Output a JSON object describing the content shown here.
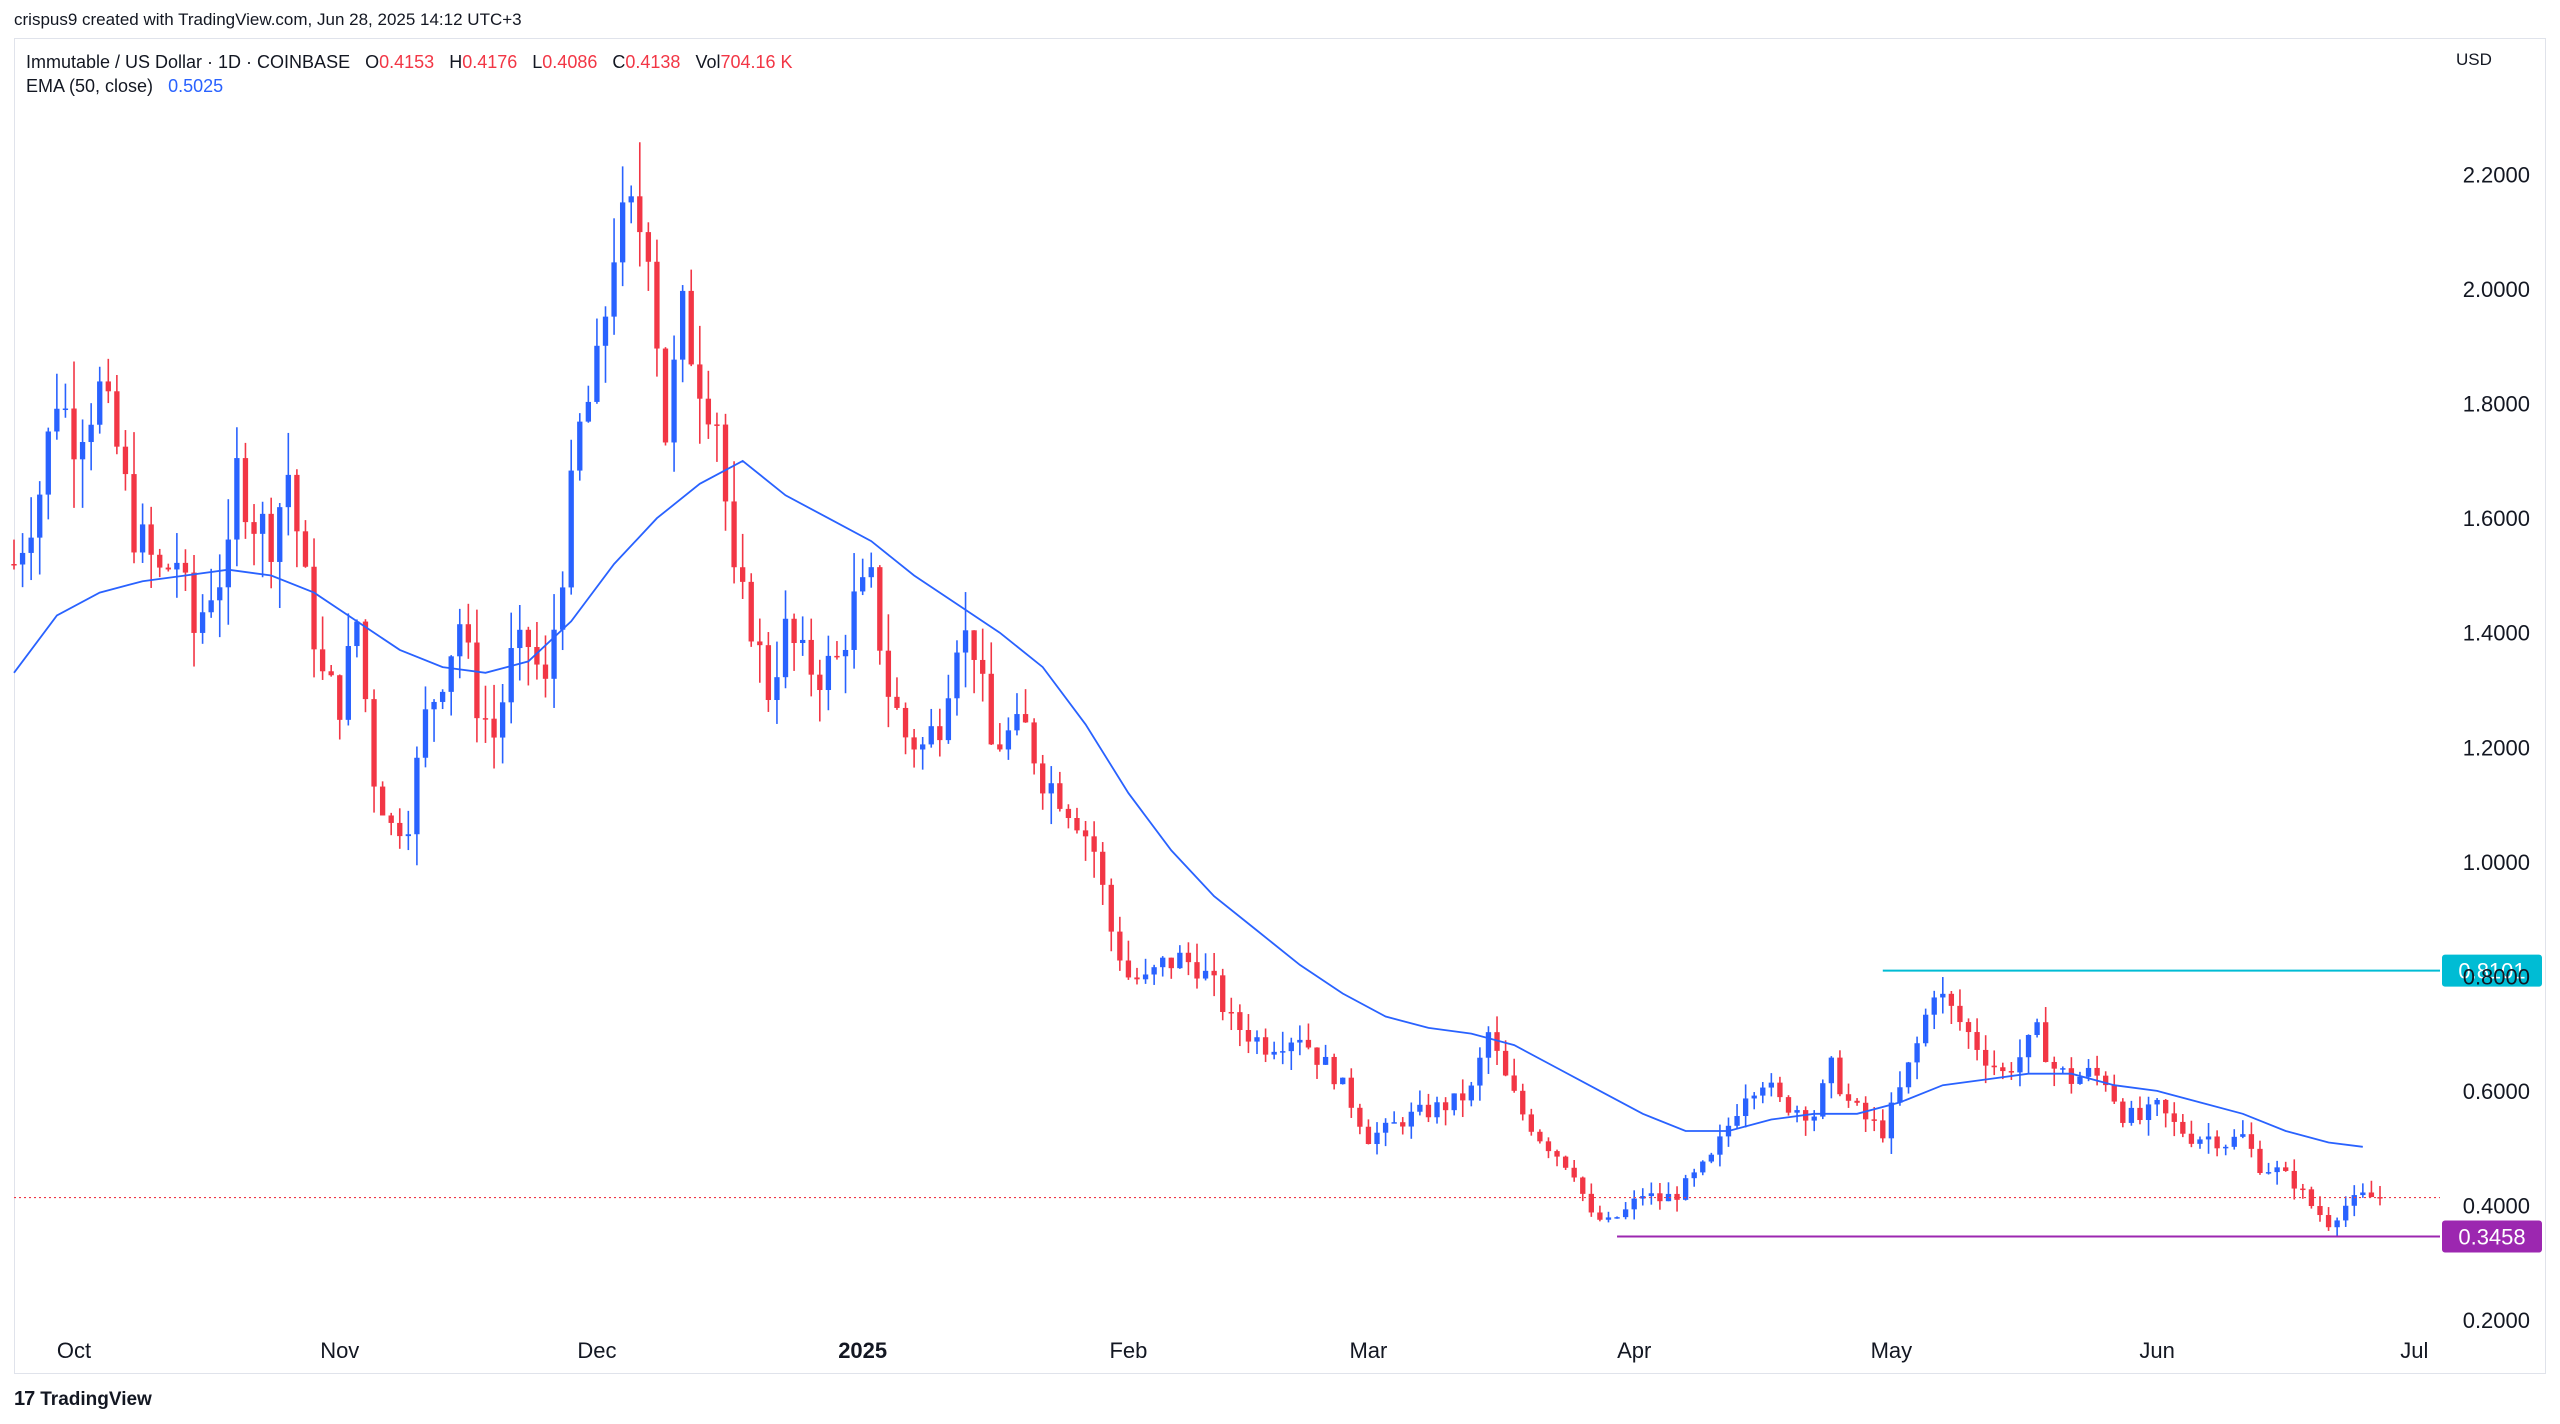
{
  "header": {
    "credit": "crispus9 created with TradingView.com, Jun 28, 2025 14:12 UTC+3"
  },
  "legend": {
    "symbol": "Immutable / US Dollar · 1D · COINBASE",
    "o_label": "O",
    "o_value": "0.4153",
    "h_label": "H",
    "h_value": "0.4176",
    "l_label": "L",
    "l_value": "0.4086",
    "c_label": "C",
    "c_value": "0.4138",
    "vol_label": "Vol",
    "vol_value": "704.16 K",
    "ema_label": "EMA (50, close)",
    "ema_value": "0.5025"
  },
  "currency": "USD",
  "footer": {
    "brand": "TradingView"
  },
  "colors": {
    "bull": "#2962ff",
    "bear": "#f23645",
    "ema": "#2962ff",
    "resistance": "#00bcd4",
    "support": "#9c27b0",
    "last_price": "#f23645"
  },
  "chart_data": {
    "type": "candlestick",
    "title": "",
    "ylim": [
      0.2,
      2.4
    ],
    "yticks": [
      "0.2000",
      "0.4000",
      "0.6000",
      "0.8000",
      "1.0000",
      "1.2000",
      "1.4000",
      "1.6000",
      "1.8000",
      "2.0000",
      "2.2000"
    ],
    "xticks": [
      {
        "label": "Oct",
        "bold": false,
        "day": 7
      },
      {
        "label": "Nov",
        "bold": false,
        "day": 38
      },
      {
        "label": "Dec",
        "bold": false,
        "day": 68
      },
      {
        "label": "2025",
        "bold": true,
        "day": 99
      },
      {
        "label": "Feb",
        "bold": false,
        "day": 130
      },
      {
        "label": "Mar",
        "bold": false,
        "day": 158
      },
      {
        "label": "Apr",
        "bold": false,
        "day": 189
      },
      {
        "label": "May",
        "bold": false,
        "day": 219
      },
      {
        "label": "Jun",
        "bold": false,
        "day": 250
      },
      {
        "label": "Jul",
        "bold": false,
        "day": 280
      }
    ],
    "day_range": [
      0,
      283
    ],
    "price_path": [
      [
        0,
        1.52
      ],
      [
        3,
        1.65
      ],
      [
        5,
        1.82
      ],
      [
        7,
        1.75
      ],
      [
        10,
        1.82
      ],
      [
        12,
        1.72
      ],
      [
        14,
        1.58
      ],
      [
        17,
        1.5
      ],
      [
        19,
        1.53
      ],
      [
        21,
        1.4
      ],
      [
        23,
        1.48
      ],
      [
        25,
        1.52
      ],
      [
        26,
        1.68
      ],
      [
        28,
        1.6
      ],
      [
        30,
        1.57
      ],
      [
        32,
        1.68
      ],
      [
        34,
        1.48
      ],
      [
        36,
        1.32
      ],
      [
        38,
        1.28
      ],
      [
        40,
        1.42
      ],
      [
        42,
        1.15
      ],
      [
        44,
        1.06
      ],
      [
        46,
        1.08
      ],
      [
        48,
        1.25
      ],
      [
        50,
        1.33
      ],
      [
        52,
        1.42
      ],
      [
        54,
        1.28
      ],
      [
        56,
        1.22
      ],
      [
        58,
        1.35
      ],
      [
        60,
        1.38
      ],
      [
        62,
        1.3
      ],
      [
        64,
        1.52
      ],
      [
        66,
        1.75
      ],
      [
        68,
        1.85
      ],
      [
        70,
        2.08
      ],
      [
        72,
        2.12
      ],
      [
        74,
        2.1
      ],
      [
        76,
        1.75
      ],
      [
        78,
        1.95
      ],
      [
        80,
        1.85
      ],
      [
        82,
        1.78
      ],
      [
        84,
        1.48
      ],
      [
        86,
        1.42
      ],
      [
        88,
        1.3
      ],
      [
        90,
        1.4
      ],
      [
        92,
        1.35
      ],
      [
        94,
        1.33
      ],
      [
        96,
        1.35
      ],
      [
        98,
        1.45
      ],
      [
        100,
        1.48
      ],
      [
        102,
        1.3
      ],
      [
        104,
        1.22
      ],
      [
        106,
        1.2
      ],
      [
        108,
        1.25
      ],
      [
        110,
        1.4
      ],
      [
        112,
        1.38
      ],
      [
        114,
        1.2
      ],
      [
        116,
        1.22
      ],
      [
        118,
        1.23
      ],
      [
        120,
        1.15
      ],
      [
        122,
        1.12
      ],
      [
        124,
        1.08
      ],
      [
        126,
        1.02
      ],
      [
        128,
        0.88
      ],
      [
        130,
        0.8
      ],
      [
        132,
        0.79
      ],
      [
        134,
        0.82
      ],
      [
        136,
        0.83
      ],
      [
        138,
        0.82
      ],
      [
        140,
        0.78
      ],
      [
        142,
        0.72
      ],
      [
        144,
        0.7
      ],
      [
        146,
        0.68
      ],
      [
        148,
        0.69
      ],
      [
        150,
        0.7
      ],
      [
        152,
        0.66
      ],
      [
        154,
        0.63
      ],
      [
        156,
        0.58
      ],
      [
        158,
        0.52
      ],
      [
        160,
        0.53
      ],
      [
        162,
        0.55
      ],
      [
        164,
        0.56
      ],
      [
        166,
        0.57
      ],
      [
        168,
        0.58
      ],
      [
        170,
        0.6
      ],
      [
        172,
        0.7
      ],
      [
        174,
        0.62
      ],
      [
        176,
        0.56
      ],
      [
        178,
        0.52
      ],
      [
        180,
        0.49
      ],
      [
        182,
        0.46
      ],
      [
        184,
        0.38
      ],
      [
        186,
        0.37
      ],
      [
        188,
        0.39
      ],
      [
        190,
        0.42
      ],
      [
        192,
        0.41
      ],
      [
        194,
        0.42
      ],
      [
        196,
        0.45
      ],
      [
        198,
        0.48
      ],
      [
        200,
        0.54
      ],
      [
        202,
        0.6
      ],
      [
        204,
        0.62
      ],
      [
        206,
        0.58
      ],
      [
        208,
        0.57
      ],
      [
        210,
        0.56
      ],
      [
        212,
        0.64
      ],
      [
        214,
        0.58
      ],
      [
        216,
        0.55
      ],
      [
        218,
        0.53
      ],
      [
        220,
        0.6
      ],
      [
        222,
        0.68
      ],
      [
        224,
        0.78
      ],
      [
        226,
        0.74
      ],
      [
        228,
        0.7
      ],
      [
        230,
        0.66
      ],
      [
        232,
        0.63
      ],
      [
        234,
        0.66
      ],
      [
        236,
        0.7
      ],
      [
        238,
        0.64
      ],
      [
        240,
        0.62
      ],
      [
        242,
        0.63
      ],
      [
        244,
        0.62
      ],
      [
        246,
        0.56
      ],
      [
        248,
        0.55
      ],
      [
        250,
        0.57
      ],
      [
        252,
        0.54
      ],
      [
        254,
        0.52
      ],
      [
        256,
        0.52
      ],
      [
        258,
        0.51
      ],
      [
        260,
        0.52
      ],
      [
        262,
        0.47
      ],
      [
        264,
        0.46
      ],
      [
        266,
        0.44
      ],
      [
        268,
        0.4
      ],
      [
        270,
        0.37
      ],
      [
        272,
        0.4
      ],
      [
        274,
        0.415
      ],
      [
        276,
        0.414
      ]
    ],
    "ema_path": [
      [
        0,
        1.33
      ],
      [
        5,
        1.43
      ],
      [
        10,
        1.47
      ],
      [
        15,
        1.49
      ],
      [
        20,
        1.5
      ],
      [
        25,
        1.51
      ],
      [
        30,
        1.5
      ],
      [
        35,
        1.47
      ],
      [
        40,
        1.42
      ],
      [
        45,
        1.37
      ],
      [
        50,
        1.34
      ],
      [
        55,
        1.33
      ],
      [
        60,
        1.35
      ],
      [
        65,
        1.42
      ],
      [
        70,
        1.52
      ],
      [
        75,
        1.6
      ],
      [
        80,
        1.66
      ],
      [
        85,
        1.7
      ],
      [
        90,
        1.64
      ],
      [
        95,
        1.6
      ],
      [
        100,
        1.56
      ],
      [
        105,
        1.5
      ],
      [
        110,
        1.45
      ],
      [
        115,
        1.4
      ],
      [
        120,
        1.34
      ],
      [
        125,
        1.24
      ],
      [
        130,
        1.12
      ],
      [
        135,
        1.02
      ],
      [
        140,
        0.94
      ],
      [
        145,
        0.88
      ],
      [
        150,
        0.82
      ],
      [
        155,
        0.77
      ],
      [
        160,
        0.73
      ],
      [
        165,
        0.71
      ],
      [
        170,
        0.7
      ],
      [
        175,
        0.68
      ],
      [
        180,
        0.64
      ],
      [
        185,
        0.6
      ],
      [
        190,
        0.56
      ],
      [
        195,
        0.53
      ],
      [
        200,
        0.53
      ],
      [
        205,
        0.55
      ],
      [
        210,
        0.56
      ],
      [
        215,
        0.56
      ],
      [
        220,
        0.58
      ],
      [
        225,
        0.61
      ],
      [
        230,
        0.62
      ],
      [
        235,
        0.63
      ],
      [
        240,
        0.63
      ],
      [
        245,
        0.61
      ],
      [
        250,
        0.6
      ],
      [
        255,
        0.58
      ],
      [
        260,
        0.56
      ],
      [
        265,
        0.53
      ],
      [
        270,
        0.51
      ],
      [
        274,
        0.5025
      ]
    ],
    "horizontal_lines": [
      {
        "name": "resistance",
        "value": 0.8101,
        "label": "0.8101",
        "from_day": 218,
        "color": "#00bcd4"
      },
      {
        "name": "support",
        "value": 0.3458,
        "label": "0.3458",
        "from_day": 187,
        "color": "#9c27b0"
      }
    ],
    "last_price": 0.4138
  }
}
